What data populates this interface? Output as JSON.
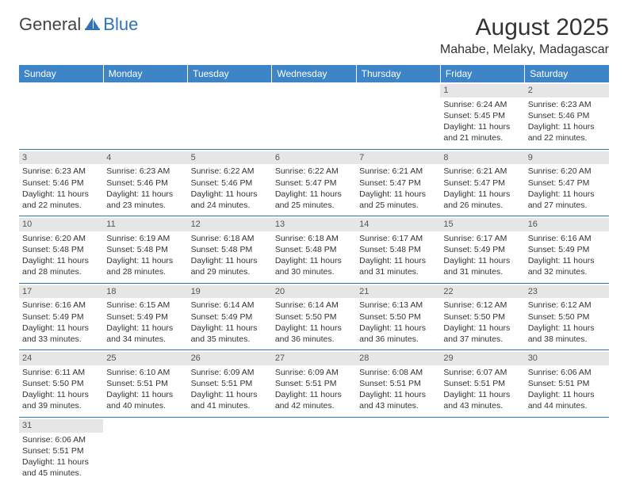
{
  "logo": {
    "general": "General",
    "blue": "Blue",
    "brand_color": "#2f73b8",
    "text_color": "#444444"
  },
  "title": "August 2025",
  "location": "Mahabe, Melaky, Madagascar",
  "header_bg": "#3d85c6",
  "header_fg": "#ffffff",
  "daynum_bg": "#e6e6e6",
  "border_color": "#2f73b8",
  "dayHeaders": [
    "Sunday",
    "Monday",
    "Tuesday",
    "Wednesday",
    "Thursday",
    "Friday",
    "Saturday"
  ],
  "weeks": [
    [
      null,
      null,
      null,
      null,
      null,
      {
        "n": 1,
        "sunrise": "6:24 AM",
        "sunset": "5:45 PM",
        "day_h": 11,
        "day_m": 21
      },
      {
        "n": 2,
        "sunrise": "6:23 AM",
        "sunset": "5:46 PM",
        "day_h": 11,
        "day_m": 22
      }
    ],
    [
      {
        "n": 3,
        "sunrise": "6:23 AM",
        "sunset": "5:46 PM",
        "day_h": 11,
        "day_m": 22
      },
      {
        "n": 4,
        "sunrise": "6:23 AM",
        "sunset": "5:46 PM",
        "day_h": 11,
        "day_m": 23
      },
      {
        "n": 5,
        "sunrise": "6:22 AM",
        "sunset": "5:46 PM",
        "day_h": 11,
        "day_m": 24
      },
      {
        "n": 6,
        "sunrise": "6:22 AM",
        "sunset": "5:47 PM",
        "day_h": 11,
        "day_m": 25
      },
      {
        "n": 7,
        "sunrise": "6:21 AM",
        "sunset": "5:47 PM",
        "day_h": 11,
        "day_m": 25
      },
      {
        "n": 8,
        "sunrise": "6:21 AM",
        "sunset": "5:47 PM",
        "day_h": 11,
        "day_m": 26
      },
      {
        "n": 9,
        "sunrise": "6:20 AM",
        "sunset": "5:47 PM",
        "day_h": 11,
        "day_m": 27
      }
    ],
    [
      {
        "n": 10,
        "sunrise": "6:20 AM",
        "sunset": "5:48 PM",
        "day_h": 11,
        "day_m": 28
      },
      {
        "n": 11,
        "sunrise": "6:19 AM",
        "sunset": "5:48 PM",
        "day_h": 11,
        "day_m": 28
      },
      {
        "n": 12,
        "sunrise": "6:18 AM",
        "sunset": "5:48 PM",
        "day_h": 11,
        "day_m": 29
      },
      {
        "n": 13,
        "sunrise": "6:18 AM",
        "sunset": "5:48 PM",
        "day_h": 11,
        "day_m": 30
      },
      {
        "n": 14,
        "sunrise": "6:17 AM",
        "sunset": "5:48 PM",
        "day_h": 11,
        "day_m": 31
      },
      {
        "n": 15,
        "sunrise": "6:17 AM",
        "sunset": "5:49 PM",
        "day_h": 11,
        "day_m": 31
      },
      {
        "n": 16,
        "sunrise": "6:16 AM",
        "sunset": "5:49 PM",
        "day_h": 11,
        "day_m": 32
      }
    ],
    [
      {
        "n": 17,
        "sunrise": "6:16 AM",
        "sunset": "5:49 PM",
        "day_h": 11,
        "day_m": 33
      },
      {
        "n": 18,
        "sunrise": "6:15 AM",
        "sunset": "5:49 PM",
        "day_h": 11,
        "day_m": 34
      },
      {
        "n": 19,
        "sunrise": "6:14 AM",
        "sunset": "5:49 PM",
        "day_h": 11,
        "day_m": 35
      },
      {
        "n": 20,
        "sunrise": "6:14 AM",
        "sunset": "5:50 PM",
        "day_h": 11,
        "day_m": 36
      },
      {
        "n": 21,
        "sunrise": "6:13 AM",
        "sunset": "5:50 PM",
        "day_h": 11,
        "day_m": 36
      },
      {
        "n": 22,
        "sunrise": "6:12 AM",
        "sunset": "5:50 PM",
        "day_h": 11,
        "day_m": 37
      },
      {
        "n": 23,
        "sunrise": "6:12 AM",
        "sunset": "5:50 PM",
        "day_h": 11,
        "day_m": 38
      }
    ],
    [
      {
        "n": 24,
        "sunrise": "6:11 AM",
        "sunset": "5:50 PM",
        "day_h": 11,
        "day_m": 39
      },
      {
        "n": 25,
        "sunrise": "6:10 AM",
        "sunset": "5:51 PM",
        "day_h": 11,
        "day_m": 40
      },
      {
        "n": 26,
        "sunrise": "6:09 AM",
        "sunset": "5:51 PM",
        "day_h": 11,
        "day_m": 41
      },
      {
        "n": 27,
        "sunrise": "6:09 AM",
        "sunset": "5:51 PM",
        "day_h": 11,
        "day_m": 42
      },
      {
        "n": 28,
        "sunrise": "6:08 AM",
        "sunset": "5:51 PM",
        "day_h": 11,
        "day_m": 43
      },
      {
        "n": 29,
        "sunrise": "6:07 AM",
        "sunset": "5:51 PM",
        "day_h": 11,
        "day_m": 43
      },
      {
        "n": 30,
        "sunrise": "6:06 AM",
        "sunset": "5:51 PM",
        "day_h": 11,
        "day_m": 44
      }
    ],
    [
      {
        "n": 31,
        "sunrise": "6:06 AM",
        "sunset": "5:51 PM",
        "day_h": 11,
        "day_m": 45
      },
      null,
      null,
      null,
      null,
      null,
      null
    ]
  ],
  "labels": {
    "sunrise": "Sunrise:",
    "sunset": "Sunset:",
    "daylight": "Daylight:",
    "hours": "hours",
    "and": "and",
    "minutes": "minutes."
  }
}
